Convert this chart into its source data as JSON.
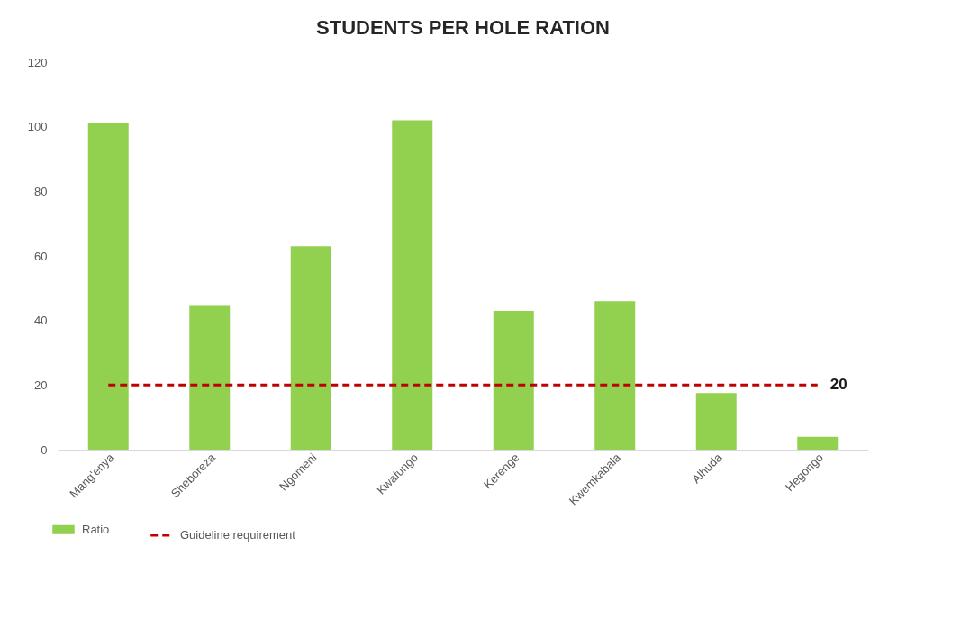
{
  "chart_data": {
    "type": "bar",
    "title": "STUDENTS PER HOLE RATION",
    "categories": [
      "Mang'enya",
      "Sheboreza",
      "Ngomeni",
      "Kwafungo",
      "Kerenge",
      "Kwemkabala",
      "Alhuda",
      "Hegongo"
    ],
    "ylim": [
      0,
      120
    ],
    "yticks": [
      0,
      20,
      40,
      60,
      80,
      100,
      120
    ],
    "grid": false,
    "legend": "bottom",
    "series": [
      {
        "name": "Ratio",
        "color": "#92d050",
        "values": [
          101,
          44.5,
          63,
          102,
          43,
          46,
          17.5,
          4
        ]
      },
      {
        "name": "Guideline requirement",
        "type": "line",
        "color": "#c00000",
        "line_style": "dashed",
        "values": [
          20,
          20,
          20,
          20,
          20,
          20,
          20,
          20
        ],
        "value_labels": [
          null,
          null,
          null,
          null,
          null,
          null,
          null,
          "20"
        ]
      }
    ]
  }
}
